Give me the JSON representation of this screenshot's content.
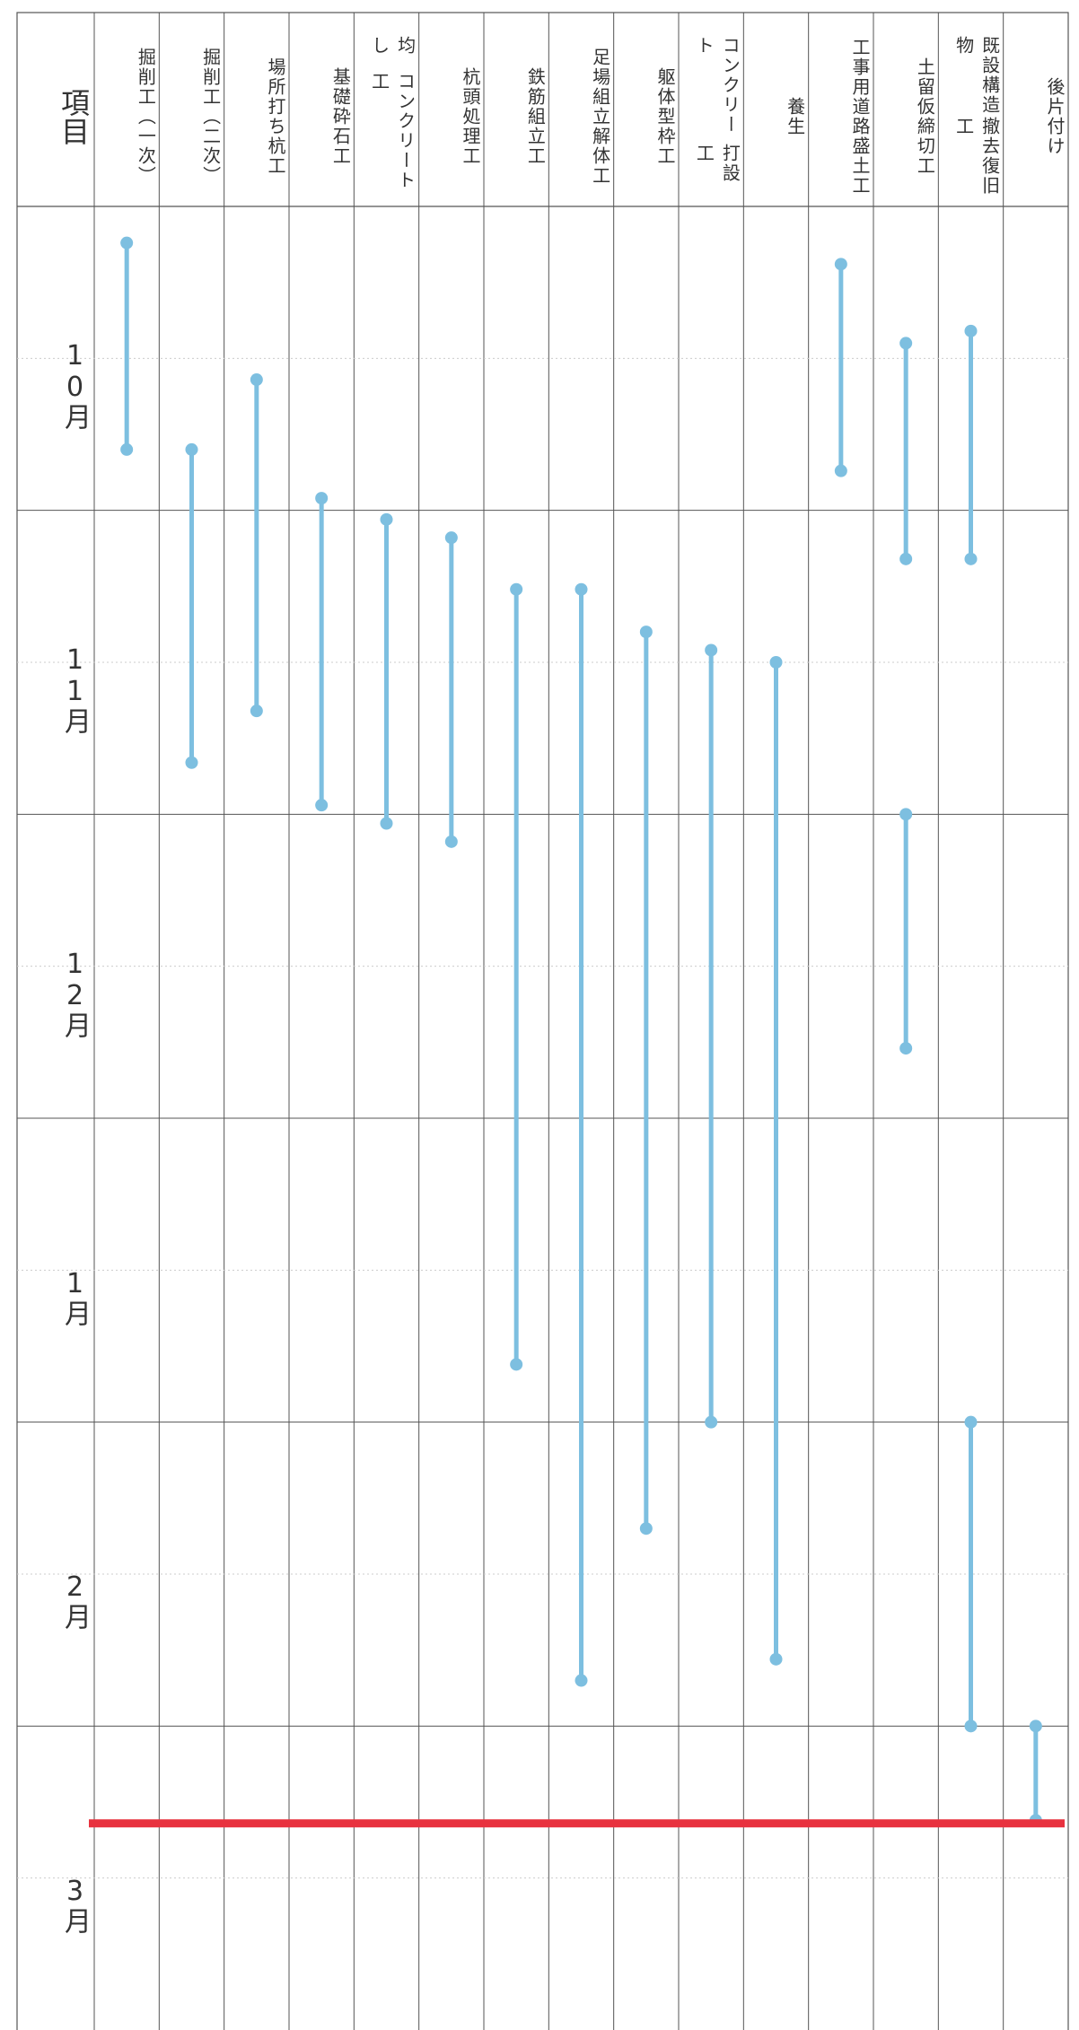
{
  "chart_data": {
    "type": "gantt",
    "corner_label": "項目",
    "categories": [
      "10月",
      "11月",
      "12月",
      "1月",
      "2月",
      "3月"
    ],
    "ylim": [
      0,
      6
    ],
    "color": "#7dbfe0",
    "today_line": 5.32,
    "today_color": "#e8323f",
    "tasks": [
      {
        "name": [
          "掘削工",
          "（一次）"
        ],
        "segments": [
          [
            0.12,
            0.8
          ]
        ]
      },
      {
        "name": [
          "掘削工",
          "（二次）"
        ],
        "segments": [
          [
            0.8,
            1.83
          ]
        ]
      },
      {
        "name": [
          "場所打ち杭工"
        ],
        "segments": [
          [
            0.57,
            1.66
          ]
        ]
      },
      {
        "name": [
          "基礎砕石工"
        ],
        "segments": [
          [
            0.96,
            1.97
          ]
        ]
      },
      {
        "name": [
          "均し",
          "コンクリート工"
        ],
        "segments": [
          [
            1.03,
            2.03
          ]
        ]
      },
      {
        "name": [
          "杭頭処理工"
        ],
        "segments": [
          [
            1.09,
            2.09
          ]
        ]
      },
      {
        "name": [
          "鉄筋組立工"
        ],
        "segments": [
          [
            1.26,
            3.81
          ]
        ]
      },
      {
        "name": [
          "足場組立",
          "解体工"
        ],
        "segments": [
          [
            1.26,
            4.85
          ]
        ]
      },
      {
        "name": [
          "躯体型枠工"
        ],
        "segments": [
          [
            1.4,
            4.35
          ]
        ]
      },
      {
        "name": [
          "コンクリート",
          "打設工"
        ],
        "segments": [
          [
            1.46,
            4.0
          ]
        ]
      },
      {
        "name": [
          "養生"
        ],
        "segments": [
          [
            1.5,
            4.78
          ]
        ]
      },
      {
        "name": [
          "工事用",
          "道路盛土工"
        ],
        "segments": [
          [
            0.19,
            0.87
          ]
        ]
      },
      {
        "name": [
          "土留仮締切工"
        ],
        "segments": [
          [
            0.45,
            1.16
          ],
          [
            2.0,
            2.77
          ]
        ]
      },
      {
        "name": [
          "既設構造物",
          "撤去復旧工"
        ],
        "segments": [
          [
            0.41,
            1.16
          ],
          [
            4.0,
            5.0
          ]
        ]
      },
      {
        "name": [
          "後片付け"
        ],
        "segments": [
          [
            5.0,
            5.31
          ]
        ]
      }
    ]
  }
}
